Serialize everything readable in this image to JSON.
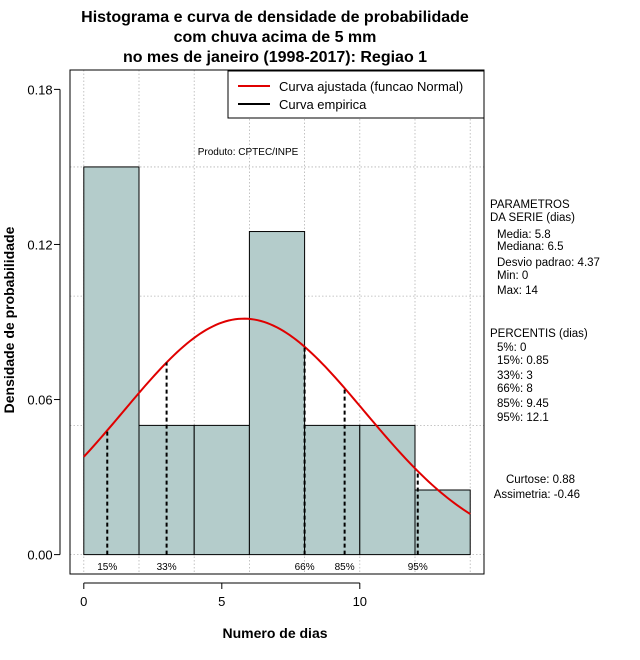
{
  "chart_data": {
    "type": "histogram",
    "title_lines": [
      "Histograma e curva de densidade de probabilidade",
      "com chuva acima de 5 mm",
      "no mes de janeiro (1998-2017): Regiao 1"
    ],
    "xlabel": "Numero de dias",
    "ylabel": "Densidade de probabilidade",
    "xlim": [
      -0.5,
      14.5
    ],
    "ylim": [
      -0.0075,
      0.1875
    ],
    "x_ticks": [
      0,
      5,
      10
    ],
    "x_tick_labels": [
      "0",
      "5",
      "10"
    ],
    "y_ticks": [
      0.0,
      0.06,
      0.12,
      0.18
    ],
    "y_tick_labels": [
      "0.00",
      "0.06",
      "0.12",
      "0.18"
    ],
    "grid_x": [
      0,
      2,
      4,
      6,
      8,
      10,
      12,
      14
    ],
    "grid_y": [
      0.0,
      0.05,
      0.1,
      0.15
    ],
    "bins": [
      {
        "x0": 0,
        "x1": 2,
        "density": 0.15
      },
      {
        "x0": 2,
        "x1": 4,
        "density": 0.05
      },
      {
        "x0": 4,
        "x1": 6,
        "density": 0.05
      },
      {
        "x0": 6,
        "x1": 8,
        "density": 0.125
      },
      {
        "x0": 8,
        "x1": 10,
        "density": 0.05
      },
      {
        "x0": 10,
        "x1": 12,
        "density": 0.05
      },
      {
        "x0": 12,
        "x1": 14,
        "density": 0.025
      }
    ],
    "normal_curve": {
      "mean": 5.8,
      "sd": 4.37,
      "x_from": 0,
      "x_to": 14
    },
    "percentile_lines": [
      {
        "label": "15%",
        "x": 0.85
      },
      {
        "label": "33%",
        "x": 3
      },
      {
        "label": "66%",
        "x": 8
      },
      {
        "label": "85%",
        "x": 9.45
      },
      {
        "label": "95%",
        "x": 12.1
      }
    ],
    "legend": {
      "position": "top-right",
      "entries": [
        {
          "label": "Curva ajustada (funcao Normal)",
          "color": "#e00000"
        },
        {
          "label": "Curva empirica",
          "color": "#000000"
        }
      ]
    },
    "source_note": "Produto: CPTEC/INPE",
    "colors": {
      "bar_fill": "#b4cccb",
      "curve": "#e00000",
      "grid": "#b4b4b4"
    }
  },
  "side_panel": {
    "parametros": [
      "PARAMETROS",
      "DA SERIE (dias)",
      "Media: 5.8",
      "Mediana: 6.5",
      "Desvio padrao: 4.37",
      "Min: 0",
      "Max: 14"
    ],
    "percentis": [
      "PERCENTIS (dias)",
      "5%: 0",
      "15%: 0.85",
      "33%: 3",
      "66%: 8",
      "85%: 9.45",
      "95%: 12.1"
    ],
    "curtose": "Curtose: 0.88",
    "assimetria": "Assimetria: -0.46"
  }
}
